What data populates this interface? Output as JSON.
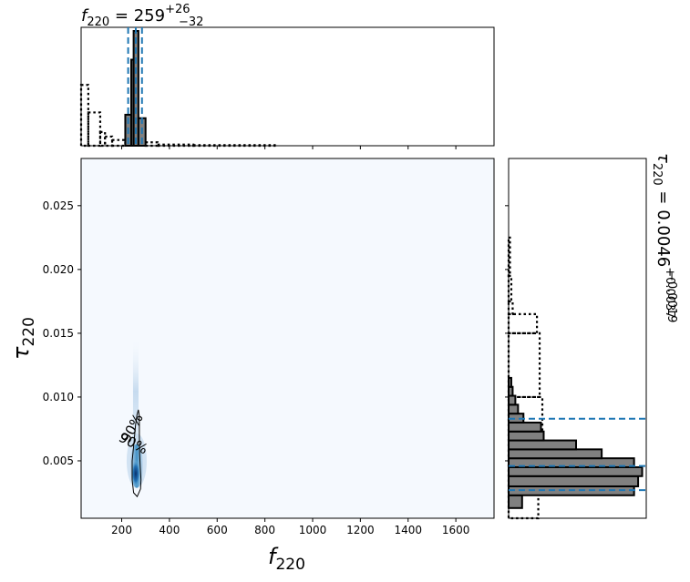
{
  "chart_data": [
    {
      "id": "top-marginal",
      "type": "histogram",
      "title": {
        "symbol": "f",
        "sub": "220",
        "value": "259",
        "sup": "+26",
        "low": "−32",
        "text": "f_220 = 259 (+26, −32)"
      },
      "xlim": [
        30,
        1760
      ],
      "posterior_bins": [
        {
          "x0": 215,
          "x1": 240,
          "h": 0.27
        },
        {
          "x0": 240,
          "x1": 250,
          "h": 0.75
        },
        {
          "x0": 250,
          "x1": 270,
          "h": 1.0
        },
        {
          "x0": 270,
          "x1": 300,
          "h": 0.24
        }
      ],
      "prior_steps": [
        {
          "x0": 30,
          "x1": 60,
          "h": 0.53
        },
        {
          "x0": 60,
          "x1": 110,
          "h": 0.29
        },
        {
          "x0": 110,
          "x1": 130,
          "h": 0.12
        },
        {
          "x0": 130,
          "x1": 160,
          "h": 0.08
        },
        {
          "x0": 160,
          "x1": 215,
          "h": 0.05
        },
        {
          "x0": 300,
          "x1": 350,
          "h": 0.03
        },
        {
          "x0": 350,
          "x1": 500,
          "h": 0.01
        },
        {
          "x0": 500,
          "x1": 850,
          "h": 0.005
        }
      ],
      "quantile_lines": [
        227,
        259,
        285
      ]
    },
    {
      "id": "joint-density",
      "type": "heatmap",
      "xlabel": {
        "symbol": "f",
        "sub": "220"
      },
      "ylabel": {
        "symbol": "τ",
        "sub": "220"
      },
      "xlim": [
        30,
        1760
      ],
      "ylim": [
        0.0005,
        0.0287
      ],
      "xticks": [
        "200",
        "400",
        "600",
        "800",
        "1000",
        "1200",
        "1400",
        "1600"
      ],
      "xtick_values": [
        200,
        400,
        600,
        800,
        1000,
        1200,
        1400,
        1600
      ],
      "yticks": [
        "0.005",
        "0.010",
        "0.015",
        "0.020",
        "0.025"
      ],
      "ytick_values": [
        0.005,
        0.01,
        0.015,
        0.02,
        0.025
      ],
      "density_peak": {
        "x": 259,
        "y": 0.004
      },
      "contour_label": "90%",
      "contour_points": [
        [
          270,
          0.009
        ],
        [
          274,
          0.0085
        ],
        [
          274,
          0.007
        ],
        [
          275,
          0.0055
        ],
        [
          278,
          0.0045
        ],
        [
          281,
          0.0035
        ],
        [
          279,
          0.0028
        ],
        [
          265,
          0.0022
        ],
        [
          250,
          0.0025
        ],
        [
          244,
          0.0035
        ],
        [
          244,
          0.005
        ],
        [
          252,
          0.0065
        ],
        [
          258,
          0.0078
        ],
        [
          264,
          0.0086
        ],
        [
          270,
          0.009
        ]
      ],
      "colors": {
        "background": "#f5f9fe",
        "cmap_low": "#deebf7",
        "cmap_mid": "#6baed6",
        "cmap_high": "#08306b"
      }
    },
    {
      "id": "right-marginal",
      "type": "histogram",
      "orientation": "horizontal",
      "title": {
        "symbol": "τ",
        "sub": "220",
        "value": "0.0046",
        "sup": "+0.0037",
        "low": "−0.0019",
        "text": "τ_220 = 0.0046 (+0.0037, −0.0019)"
      },
      "ylim": [
        0.0005,
        0.0287
      ],
      "posterior_bins": [
        {
          "y0": 0.0013,
          "y1": 0.0023,
          "h": 0.1
        },
        {
          "y0": 0.0023,
          "y1": 0.003,
          "h": 0.93
        },
        {
          "y0": 0.003,
          "y1": 0.0038,
          "h": 0.96
        },
        {
          "y0": 0.0038,
          "y1": 0.0045,
          "h": 0.99
        },
        {
          "y0": 0.0045,
          "y1": 0.0052,
          "h": 0.93
        },
        {
          "y0": 0.0052,
          "y1": 0.0059,
          "h": 0.69
        },
        {
          "y0": 0.0059,
          "y1": 0.0066,
          "h": 0.5
        },
        {
          "y0": 0.0066,
          "y1": 0.0073,
          "h": 0.26
        },
        {
          "y0": 0.0073,
          "y1": 0.008,
          "h": 0.24
        },
        {
          "y0": 0.008,
          "y1": 0.0087,
          "h": 0.11
        },
        {
          "y0": 0.0087,
          "y1": 0.0094,
          "h": 0.07
        },
        {
          "y0": 0.0094,
          "y1": 0.0101,
          "h": 0.05
        },
        {
          "y0": 0.0101,
          "y1": 0.0108,
          "h": 0.03
        },
        {
          "y0": 0.0108,
          "y1": 0.0115,
          "h": 0.02
        }
      ],
      "prior_steps": [
        {
          "y0": 0.0005,
          "y1": 0.0025,
          "h": 0.22
        },
        {
          "y0": 0.0025,
          "y1": 0.006,
          "h": 0.24
        },
        {
          "y0": 0.006,
          "y1": 0.01,
          "h": 0.25
        },
        {
          "y0": 0.01,
          "y1": 0.015,
          "h": 0.23
        },
        {
          "y0": 0.015,
          "y1": 0.0165,
          "h": 0.21
        },
        {
          "y0": 0.0165,
          "y1": 0.0175,
          "h": 0.03
        },
        {
          "y0": 0.0175,
          "y1": 0.0195,
          "h": 0.02
        },
        {
          "y0": 0.0195,
          "y1": 0.0225,
          "h": 0.01
        }
      ],
      "quantile_lines": [
        0.0027,
        0.0046,
        0.0083
      ]
    }
  ],
  "colors": {
    "posterior_fill": "#808080",
    "quantile_line": "#1f77b4",
    "outline": "#000000"
  }
}
